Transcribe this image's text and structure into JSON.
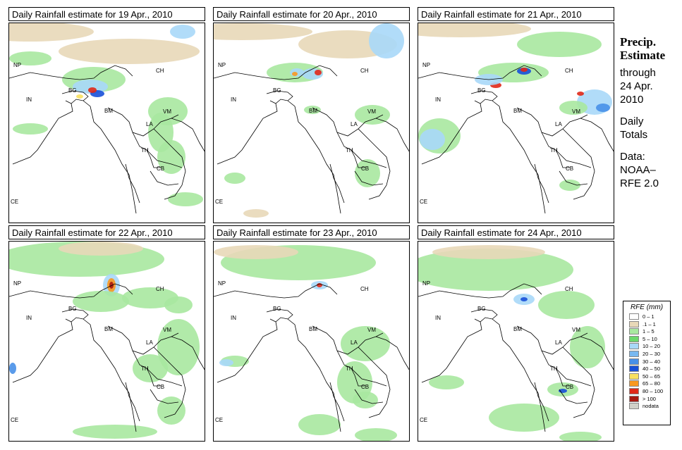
{
  "panels": [
    {
      "title": "Daily Rainfall estimate for  19 Apr., 2010"
    },
    {
      "title": "Daily Rainfall estimate for  20 Apr., 2010"
    },
    {
      "title": "Daily Rainfall estimate for  21 Apr., 2010"
    },
    {
      "title": "Daily Rainfall estimate for  22 Apr., 2010"
    },
    {
      "title": "Daily Rainfall estimate for  23 Apr., 2010"
    },
    {
      "title": "Daily Rainfall estimate for  24 Apr., 2010"
    }
  ],
  "country_labels": [
    "NP",
    "CH",
    "IN",
    "BG",
    "BM",
    "VM",
    "LA",
    "TH",
    "CB",
    "CE"
  ],
  "sidebar": {
    "title_line1": "Precip.",
    "title_line2": "Estimate",
    "through": "through",
    "date_line1": "24 Apr.",
    "date_line2": "2010",
    "daily": "Daily",
    "totals": "Totals",
    "data_label": "Data:",
    "source_line1": "NOAA–",
    "source_line2": "RFE 2.0"
  },
  "legend": {
    "title": "RFE (mm)",
    "items": [
      {
        "label": "0 – 1",
        "color": "#ffffff"
      },
      {
        "label": ".1 – 1",
        "color": "#e8d8b8"
      },
      {
        "label": "1 – 5",
        "color": "#a8e8a0"
      },
      {
        "label": "5 – 10",
        "color": "#6cd86c"
      },
      {
        "label": "10 – 20",
        "color": "#a8d8f8"
      },
      {
        "label": "20 – 30",
        "color": "#78b8f0"
      },
      {
        "label": "30 – 40",
        "color": "#4890e8"
      },
      {
        "label": "40 – 50",
        "color": "#1850d8"
      },
      {
        "label": "50 – 65",
        "color": "#f8e060"
      },
      {
        "label": "65 – 80",
        "color": "#f89820"
      },
      {
        "label": "80 – 100",
        "color": "#e02818"
      },
      {
        "label": "> 100",
        "color": "#a81810"
      },
      {
        "label": "nodata",
        "color": "#d0d0c8"
      }
    ]
  }
}
